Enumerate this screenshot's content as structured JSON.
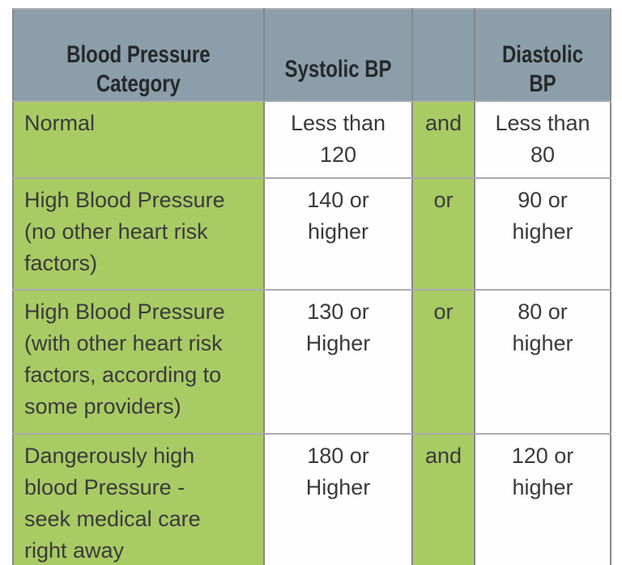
{
  "chart_data": {
    "type": "table",
    "columns": [
      "Blood Pressure\nCategory",
      "Systolic BP",
      "",
      "Diastolic BP"
    ],
    "rows": [
      [
        "Normal",
        "Less than\n120",
        "and",
        "Less than\n80"
      ],
      [
        "High Blood Pressure\n(no other heart risk\nfactors)",
        "140 or\nhigher",
        "or",
        "90 or\nhigher"
      ],
      [
        "High Blood Pressure\n(with other heart risk\nfactors, according to\nsome providers)",
        "130 or\nHigher",
        "or",
        "80 or\nhigher"
      ],
      [
        "Dangerously high\nblood Pressure -\nseek medical care\nright away",
        "180 or\nHigher",
        "and",
        "120 or\nhigher"
      ]
    ],
    "layout_hints": {
      "header_position": "top",
      "category_column_align": "left",
      "value_columns_align": "center",
      "gridlines": "on"
    }
  },
  "colors": {
    "header_bg": "#8b9eaa",
    "category_bg": "#a9cb64",
    "conjunction_bg": "#a9cb64",
    "value_bg": "#fefefe",
    "outer_border": "#8f9193",
    "vertical_border": "#85888b",
    "horizontal_border": "#a9abad",
    "header_text": "#26282b",
    "body_text": "#3a3a3c"
  }
}
